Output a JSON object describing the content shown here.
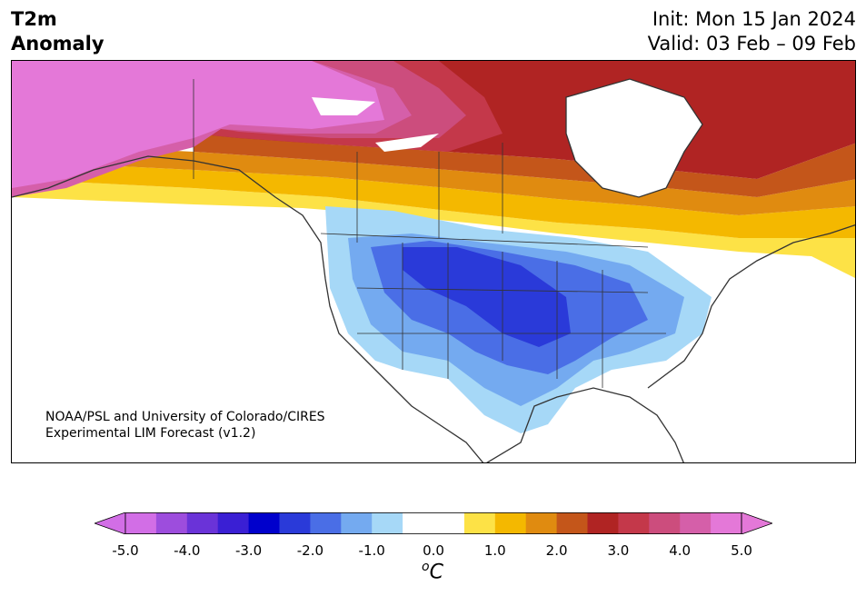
{
  "title": {
    "variable_line1": "T2m",
    "variable_line2": "Anomaly",
    "init": "Init: Mon 15 Jan 2024",
    "valid": "Valid: 03 Feb – 09 Feb"
  },
  "credit": {
    "line1": "NOAA/PSL and University of Colorado/CIRES",
    "line2": "Experimental LIM Forecast (v1.2)"
  },
  "colorbar": {
    "units_base": "C",
    "units_sup": "o",
    "ticks": [
      "-5.0",
      "-4.0",
      "-3.0",
      "-2.0",
      "-1.0",
      "0.0",
      "1.0",
      "2.0",
      "3.0",
      "4.0",
      "5.0"
    ],
    "colors": [
      "#d26ee6",
      "#9d4ddd",
      "#6a33d8",
      "#3a1fd4",
      "#0000cc",
      "#2a3ad9",
      "#4a6ee6",
      "#74aaf0",
      "#a6d8f7",
      "#ffffff",
      "#ffffff",
      "#fde246",
      "#f4b800",
      "#e08b10",
      "#c4561a",
      "#b02423",
      "#c4384a",
      "#cc4d7d",
      "#d55fa9",
      "#e478d8"
    ],
    "min_color": "#d26ee6",
    "max_color": "#e478d8"
  }
}
